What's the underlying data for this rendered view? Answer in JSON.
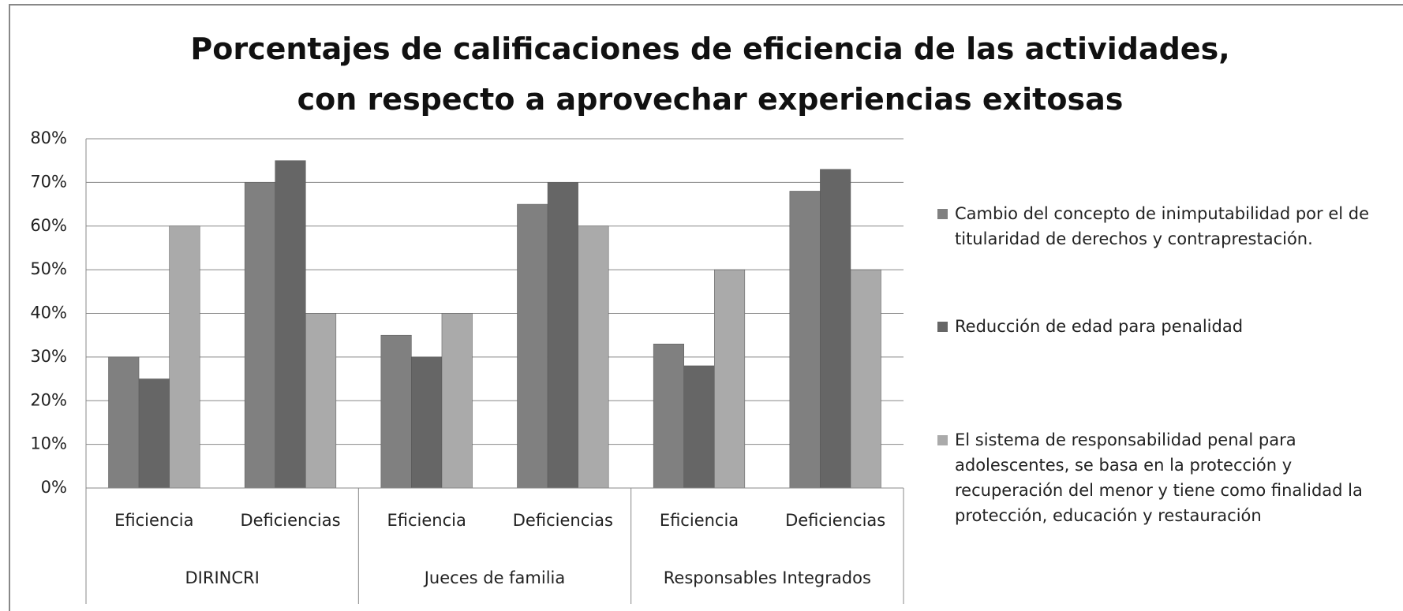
{
  "chart_data": {
    "type": "bar",
    "title": "Porcentajes de calificaciones de eficiencia de las actividades, con respecto a aprovechar experiencias exitosas",
    "groups": [
      {
        "name": "DIRINCRI",
        "categories": [
          "Eficiencia",
          "Deficiencias"
        ]
      },
      {
        "name": "Jueces de familia",
        "categories": [
          "Eficiencia",
          "Deficiencias"
        ]
      },
      {
        "name": "Responsables Integrados",
        "categories": [
          "Eficiencia",
          "Deficiencias"
        ]
      }
    ],
    "series": [
      {
        "name": "Cambio del concepto de inimputabilidad por el de titularidad de derechos y contraprestación.",
        "color": "#808080",
        "values": [
          30,
          70,
          35,
          65,
          33,
          68
        ]
      },
      {
        "name": "Reducción de edad para penalidad",
        "color": "#666666",
        "values": [
          25,
          75,
          30,
          70,
          28,
          73
        ]
      },
      {
        "name": "El sistema de responsabilidad penal para adolescentes, se basa en la protección y recuperación del menor y tiene como finalidad la protección, educación y restauración",
        "color": "#aaaaaa",
        "values": [
          60,
          40,
          40,
          60,
          50,
          50
        ]
      }
    ],
    "ylim": [
      0,
      80
    ],
    "yticks": [
      {
        "value": 0,
        "label": "0%"
      },
      {
        "value": 10,
        "label": "10%"
      },
      {
        "value": 20,
        "label": "20%"
      },
      {
        "value": 30,
        "label": "30%"
      },
      {
        "value": 40,
        "label": "40%"
      },
      {
        "value": 50,
        "label": "50%"
      },
      {
        "value": 60,
        "label": "60%"
      },
      {
        "value": 70,
        "label": "70%"
      },
      {
        "value": 80,
        "label": "80%"
      }
    ],
    "grid": true,
    "legend": "right"
  }
}
